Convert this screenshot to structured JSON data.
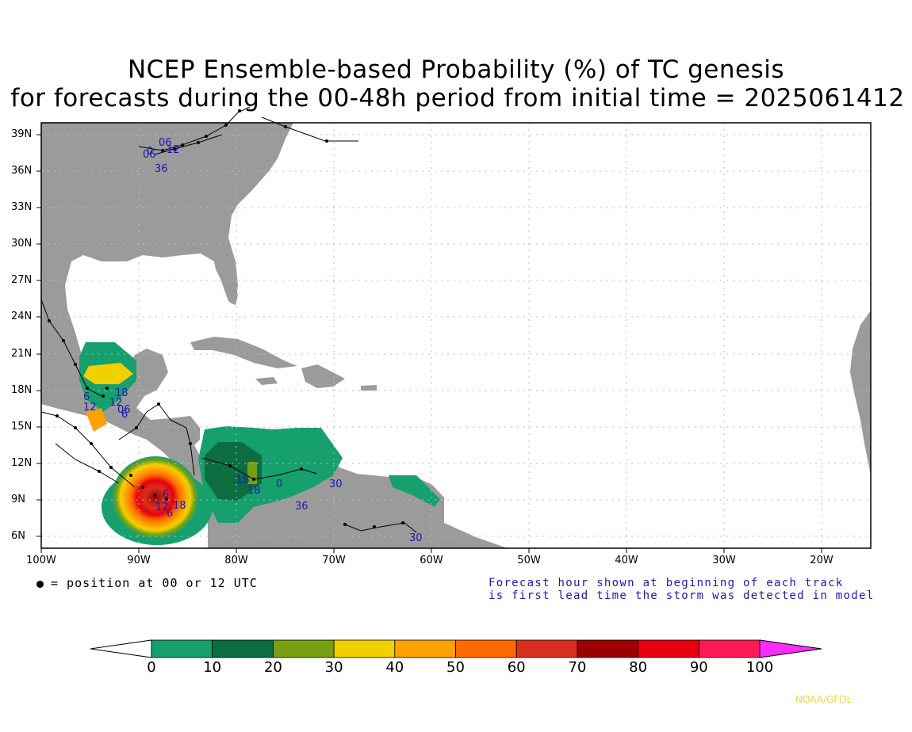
{
  "title_line1": "NCEP Ensemble-based Probability (%) of TC genesis",
  "title_line2": "for forecasts during the 00-48h period from initial time = 2025061412",
  "lat_labels": [
    "39N",
    "36N",
    "33N",
    "30N",
    "27N",
    "24N",
    "21N",
    "18N",
    "15N",
    "12N",
    "9N",
    "6N"
  ],
  "lon_labels": [
    "100W",
    "90W",
    "80W",
    "70W",
    "60W",
    "50W",
    "40W",
    "30W",
    "20W"
  ],
  "legend_text": "= position at 00 or 12 UTC",
  "note_line1": "Forecast hour shown at beginning of each track",
  "note_line2": "is first lead time the storm was detected in model",
  "colorbar": {
    "labels": [
      "0",
      "10",
      "20",
      "30",
      "40",
      "50",
      "60",
      "70",
      "80",
      "90",
      "100"
    ],
    "colors": [
      "#16a06e",
      "#0c6e40",
      "#76a012",
      "#f2d000",
      "#ffa200",
      "#ff6a00",
      "#d8301e",
      "#9a0000",
      "#e80010",
      "#ff1a55"
    ],
    "under_color": "#ffffff",
    "over_color": "#ff2cff"
  },
  "track_labels": [
    "36",
    "06",
    "06",
    "12",
    "18",
    "12",
    "06",
    "18",
    "0",
    "36",
    "30",
    "30",
    "18",
    "6",
    "12",
    "18",
    "12",
    "6",
    "6",
    "6",
    "0"
  ],
  "credit": "NOAA/GFDL",
  "colors": {
    "land": "#9b9b9b",
    "ocean": "#ffffff",
    "grid": "#bcbcbc",
    "track": "#000000",
    "label": "#1a1aaa"
  }
}
